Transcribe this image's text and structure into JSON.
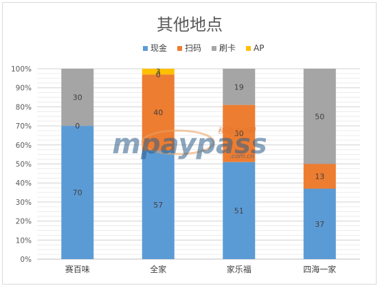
{
  "chart_data": {
    "type": "bar",
    "stacked": true,
    "title": "其他地点",
    "categories": [
      "赛百味",
      "全家",
      "家乐福",
      "四海一家"
    ],
    "series": [
      {
        "name": "现金",
        "color": "#5b9bd5",
        "values": [
          70,
          57,
          51,
          37
        ]
      },
      {
        "name": "扫码",
        "color": "#ed7d31",
        "values": [
          0,
          40,
          30,
          13
        ]
      },
      {
        "name": "刷卡",
        "color": "#a5a5a5",
        "values": [
          30,
          0,
          19,
          50
        ]
      },
      {
        "name": "AP",
        "color": "#ffc000",
        "values": [
          0,
          3,
          0,
          0
        ]
      }
    ],
    "data_labels": [
      [
        "70",
        "57",
        "51",
        "37"
      ],
      [
        "0",
        "40",
        "30",
        "13"
      ],
      [
        "30",
        "0",
        "19",
        "50"
      ],
      [
        "",
        "3",
        "",
        ""
      ]
    ],
    "y_ticks": [
      "0%",
      "10%",
      "20%",
      "30%",
      "40%",
      "50%",
      "60%",
      "70%",
      "80%",
      "90%",
      "100%"
    ],
    "ylim": [
      0,
      100
    ],
    "grid": true,
    "legend_position": "top"
  },
  "watermark": {
    "brand": "mpaypass",
    "subtitle": "移动支付网",
    "url": ".com.cn"
  }
}
